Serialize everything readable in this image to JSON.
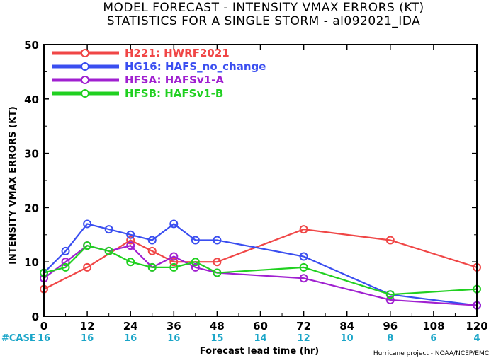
{
  "titles": {
    "line1": "MODEL FORECAST - INTENSITY VMAX ERRORS (KT)",
    "line2": "STATISTICS FOR A SINGLE STORM - al092021_IDA"
  },
  "credit": "Hurricane project - NOAA/NCEP/EMC",
  "chart_data": {
    "type": "line",
    "title": "MODEL FORECAST - INTENSITY VMAX ERRORS (KT)",
    "subtitle": "STATISTICS FOR A SINGLE STORM - al092021_IDA",
    "xlabel": "Forecast lead time (hr)",
    "ylabel": "INTENSITY VMAX ERRORS (KT)",
    "xlim": [
      0,
      120
    ],
    "ylim": [
      0,
      50
    ],
    "xticks": [
      0,
      12,
      24,
      36,
      48,
      60,
      72,
      84,
      96,
      108,
      120
    ],
    "yticks": [
      0,
      10,
      20,
      30,
      40,
      50
    ],
    "grid": false,
    "legend_position": "top-left",
    "case_label": "#CASE",
    "case_counts": [
      16,
      16,
      16,
      16,
      15,
      14,
      12,
      10,
      8,
      6,
      4
    ],
    "series": [
      {
        "legend": "H221: HWRF2021",
        "color": "#f04646",
        "x": [
          0,
          12,
          24,
          30,
          36,
          48,
          72,
          96,
          120
        ],
        "y": [
          5,
          9,
          14,
          12,
          10,
          10,
          16,
          14,
          9
        ]
      },
      {
        "legend": "HG16: HAFS_no_change",
        "color": "#3a4ef0",
        "x": [
          0,
          6,
          12,
          18,
          24,
          30,
          36,
          42,
          48,
          72,
          96,
          120
        ],
        "y": [
          8,
          12,
          17,
          16,
          15,
          14,
          17,
          14,
          14,
          11,
          4,
          2
        ]
      },
      {
        "legend": "HFSA: HAFSv1-A",
        "color": "#a020d0",
        "x": [
          0,
          6,
          12,
          18,
          24,
          30,
          36,
          42,
          48,
          72,
          96,
          120
        ],
        "y": [
          7,
          10,
          13,
          12,
          13,
          9,
          11,
          9,
          8,
          7,
          3,
          2
        ]
      },
      {
        "legend": "HFSB: HAFSv1-B",
        "color": "#20d020",
        "x": [
          0,
          6,
          12,
          18,
          24,
          30,
          36,
          42,
          48,
          72,
          96,
          120
        ],
        "y": [
          8,
          9,
          13,
          12,
          10,
          9,
          9,
          10,
          8,
          9,
          4,
          5
        ]
      }
    ]
  }
}
